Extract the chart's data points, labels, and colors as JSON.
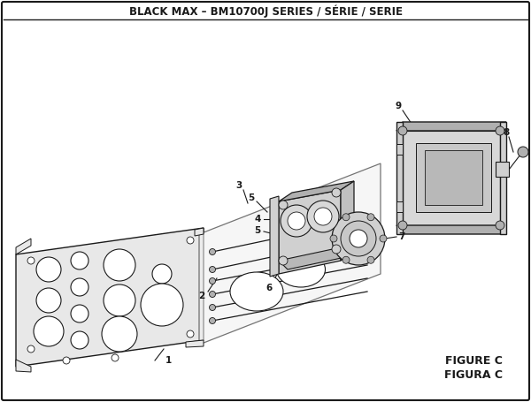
{
  "title": "BLACK MAX – BM10700J SERIES / SÉRIE / SERIE",
  "figure_label": "FIGURE C",
  "figura_label": "FIGURA C",
  "bg": "#ffffff",
  "lc": "#1a1a1a",
  "gray_light": "#e8e8e8",
  "gray_mid": "#d0d0d0",
  "gray_dark": "#b0b0b0"
}
